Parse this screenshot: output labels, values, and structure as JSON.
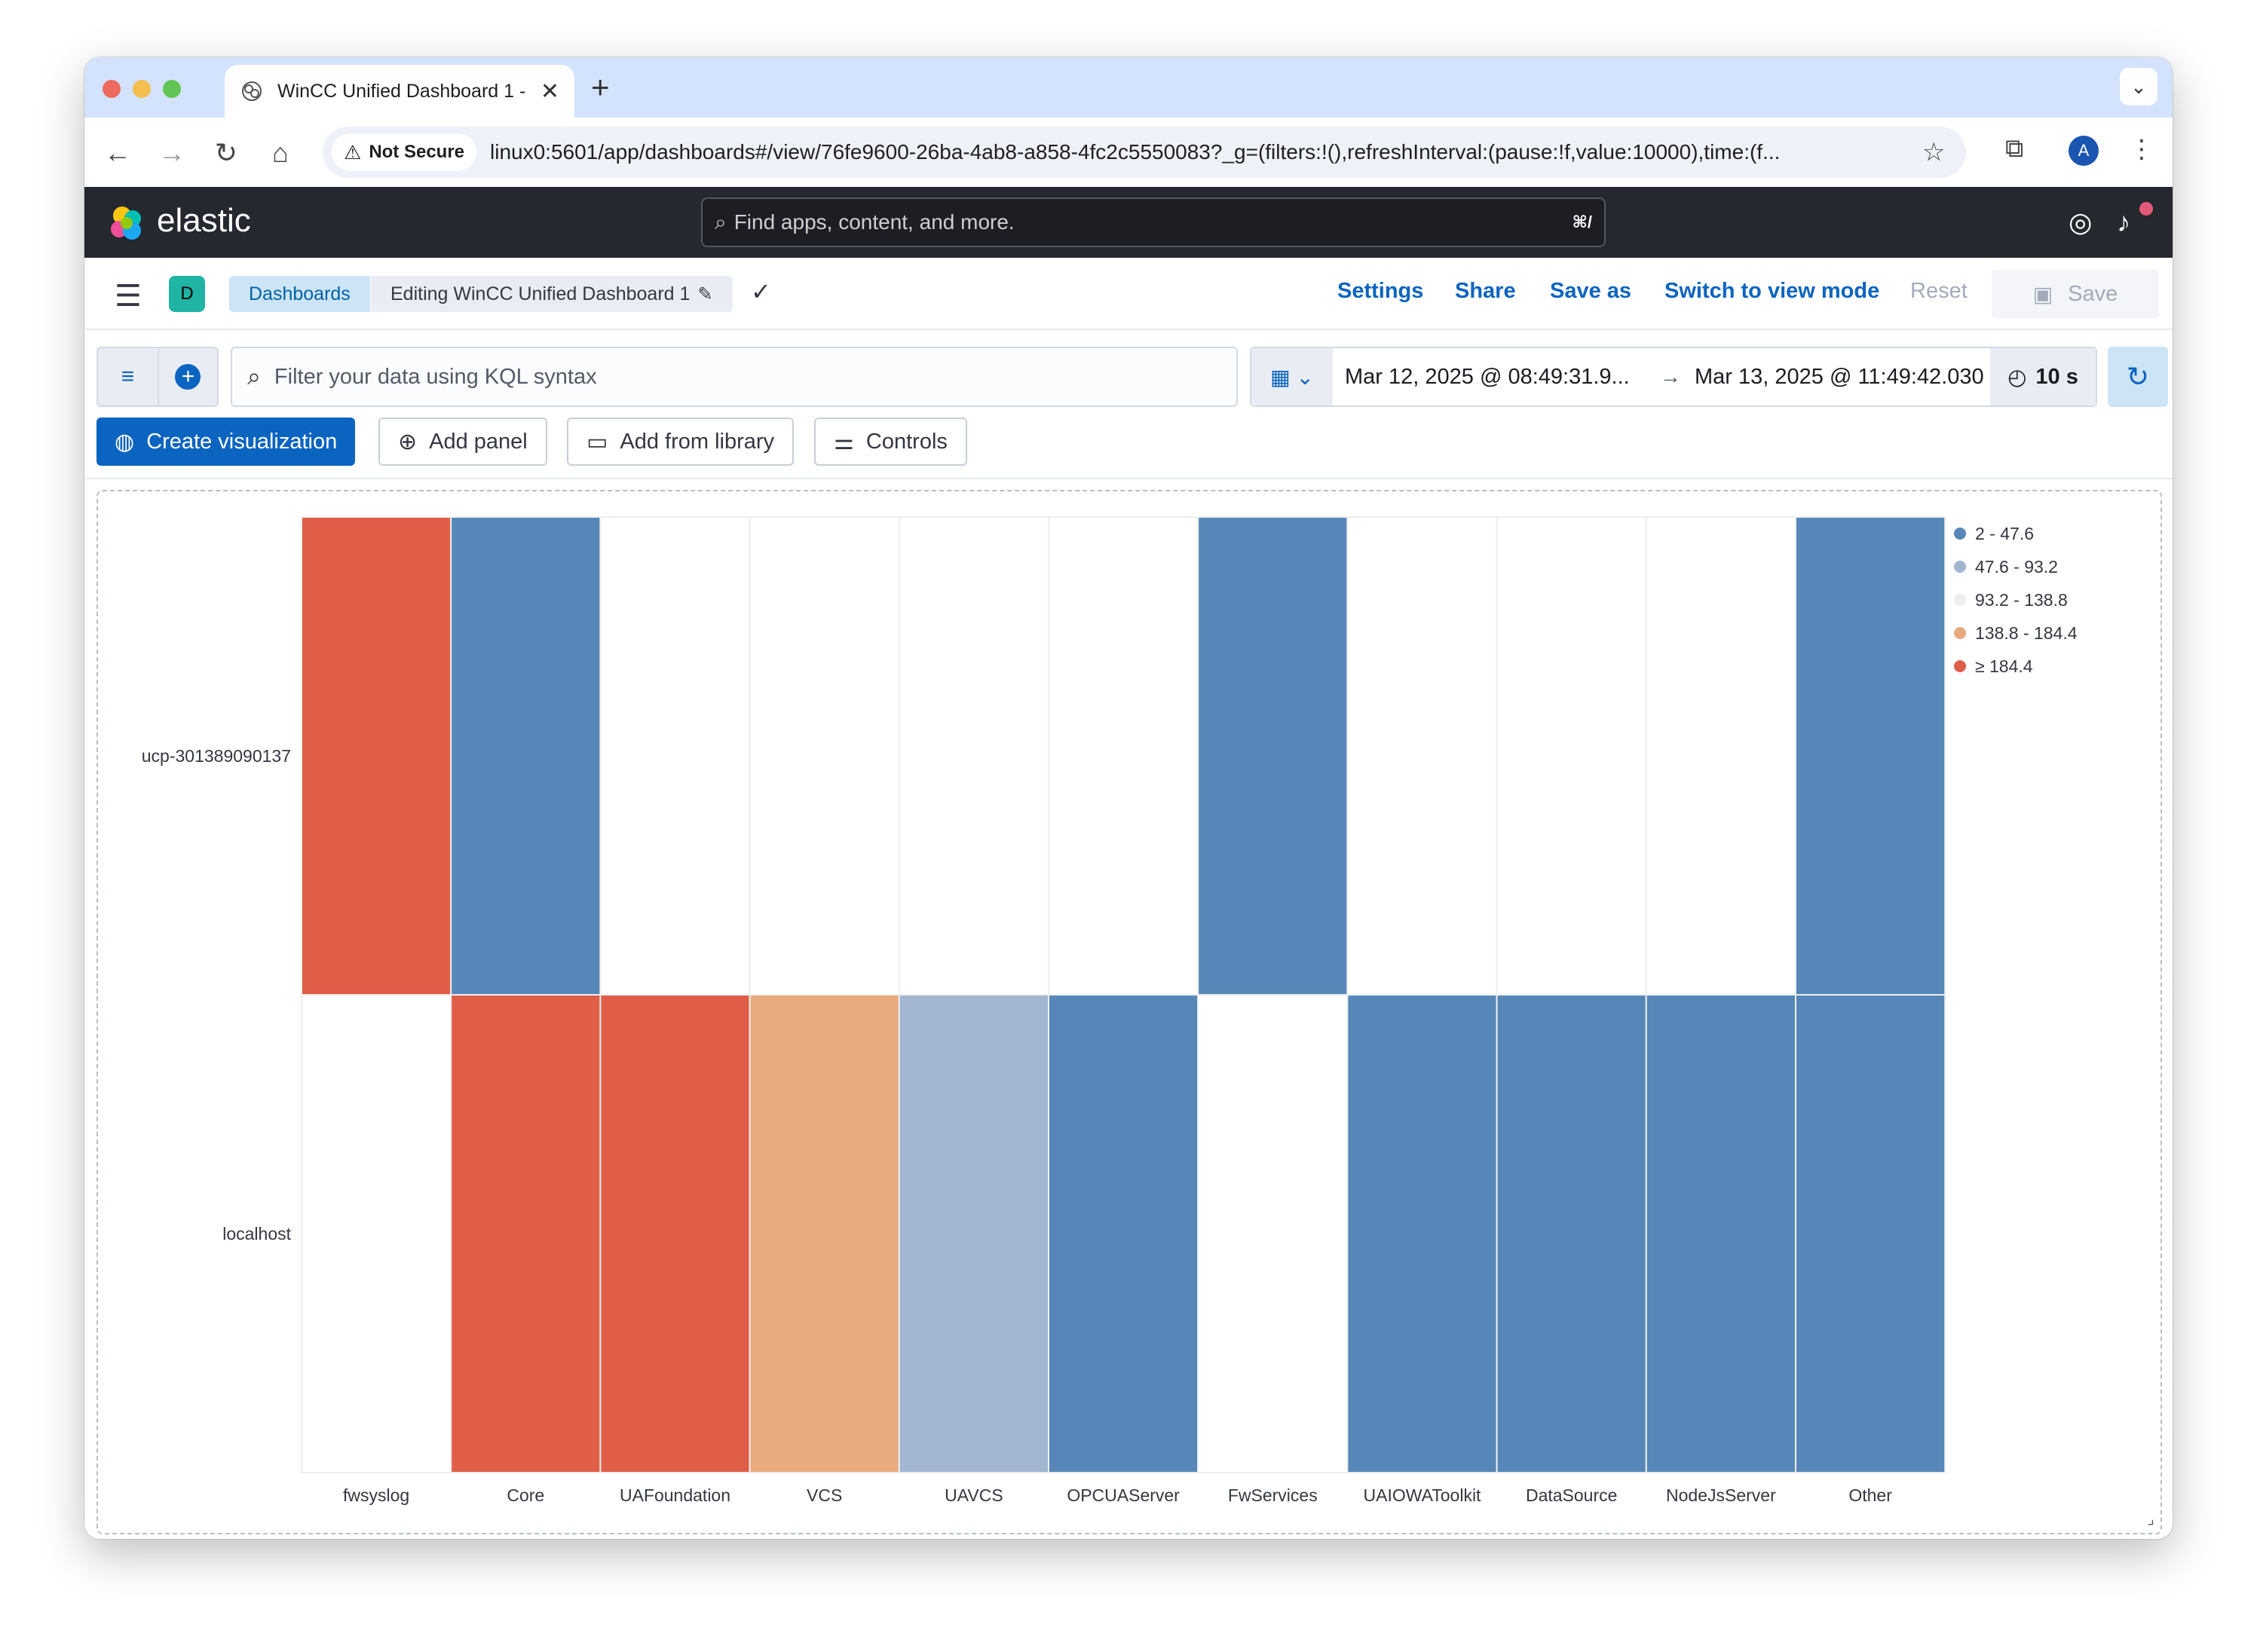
{
  "browser": {
    "tab_title": "WinCC Unified Dashboard 1 -",
    "tab_close": "✕",
    "new_tab": "+",
    "not_secure": "Not Secure",
    "url": "linux0:5601/app/dashboards#/view/76fe9600-26ba-4ab8-a858-4fc2c5550083?_g=(filters:!(),refreshInterval:(pause:!f,value:10000),time:(f...",
    "avatar_letter": "A"
  },
  "header": {
    "brand": "elastic",
    "search_placeholder": "Find apps, content, and more.",
    "search_shortcut": "⌘/"
  },
  "breadcrumbs": {
    "space_letter": "D",
    "dashboards": "Dashboards",
    "current": "Editing WinCC Unified Dashboard 1"
  },
  "actions": {
    "settings": "Settings",
    "share": "Share",
    "save_as": "Save as",
    "switch_mode": "Switch to view mode",
    "reset": "Reset",
    "save": "Save"
  },
  "query": {
    "kql_placeholder": "Filter your data using KQL syntax",
    "time_start": "Mar 12, 2025 @ 08:49:31.9...",
    "time_end": "Mar 13, 2025 @ 11:49:42.030",
    "refresh_interval": "10 s"
  },
  "panel_buttons": {
    "create_visualization": "Create visualization",
    "add_panel": "Add panel",
    "add_from_library": "Add from library",
    "controls": "Controls"
  },
  "colors": {
    "c1": "#5687b8",
    "c2": "#a2b6d1",
    "c3": "#ffffff",
    "c4": "#e8aa7e",
    "c5": "#e05e48"
  },
  "chart_data": {
    "type": "heatmap",
    "title": "",
    "x_categories": [
      "fwsyslog",
      "Core",
      "UAFoundation",
      "VCS",
      "UAVCS",
      "OPCUAServer",
      "FwServices",
      "UAIOWAToolkit",
      "DataSource",
      "NodeJsServer",
      "Other"
    ],
    "y_categories": [
      "ucp-301389090137",
      "localhost"
    ],
    "legend": {
      "position": "top-right",
      "bins": [
        "2 - 47.6",
        "47.6 - 93.2",
        "93.2 - 138.8",
        "138.8 - 184.4",
        "≥ 184.4"
      ],
      "bin_colors": [
        "#5687b8",
        "#a2b6d1",
        "#eeeeee",
        "#e8aa7e",
        "#e05e48"
      ]
    },
    "cells_bin_index": [
      [
        5,
        1,
        0,
        0,
        0,
        0,
        1,
        0,
        0,
        0,
        1
      ],
      [
        0,
        5,
        5,
        4,
        2,
        1,
        0,
        1,
        1,
        1,
        1
      ]
    ],
    "cell_bin_note_none": 0
  }
}
